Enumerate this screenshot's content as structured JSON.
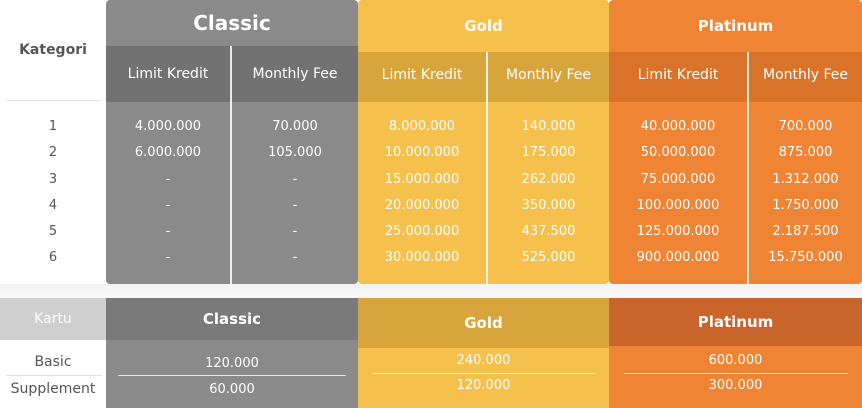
{
  "top_table": {
    "kategori_label": "Kategori",
    "tiers": [
      {
        "name": "Classic",
        "limit_label": "Limit Kredit",
        "fee_label": "Monthly Fee",
        "limits": [
          "4.000.000",
          "6.000.000",
          "-",
          "-",
          "-",
          "-"
        ],
        "fees": [
          "70.000",
          "105.000",
          "-",
          "-",
          "-",
          "-"
        ]
      },
      {
        "name": "Gold",
        "limit_label": "Limit Kredit",
        "fee_label": "Monthly Fee",
        "limits": [
          "8.000.000",
          "10.000.000",
          "15.000.000",
          "20.000.000",
          "25.000.000",
          "30.000.000"
        ],
        "fees": [
          "140.000",
          "175.000",
          "262.000",
          "350.000",
          "437.500",
          "525.000"
        ]
      },
      {
        "name": "Platinum",
        "limit_label": "Limit Kredit",
        "fee_label": "Monthly Fee",
        "limits": [
          "40.000.000",
          "50.000.000",
          "75.000.000",
          "100.000.000",
          "125.000.000",
          "900.000.000"
        ],
        "fees": [
          "700.000",
          "875.000",
          "1.312.000",
          "1.750.000",
          "2.187.500",
          "15.750.000"
        ]
      }
    ],
    "categories": [
      "1",
      "2",
      "3",
      "4",
      "5",
      "6"
    ]
  },
  "bottom_table": {
    "kartu_label": "Kartu",
    "row_labels": [
      "Basic",
      "Supplement"
    ],
    "tiers": [
      {
        "name": "Classic",
        "values": [
          "120.000",
          "60.000"
        ]
      },
      {
        "name": "Gold",
        "values": [
          "240.000",
          "120.000"
        ]
      },
      {
        "name": "Platinum",
        "values": [
          "600.000",
          "300.000"
        ]
      }
    ]
  },
  "colors": {
    "classic": "#8a8a8a",
    "classic_dark": "#727272",
    "gold": "#f6c04d",
    "gold_dark": "#d8a43c",
    "platinum": "#ee8434",
    "platinum_dark": "#d9732a"
  }
}
